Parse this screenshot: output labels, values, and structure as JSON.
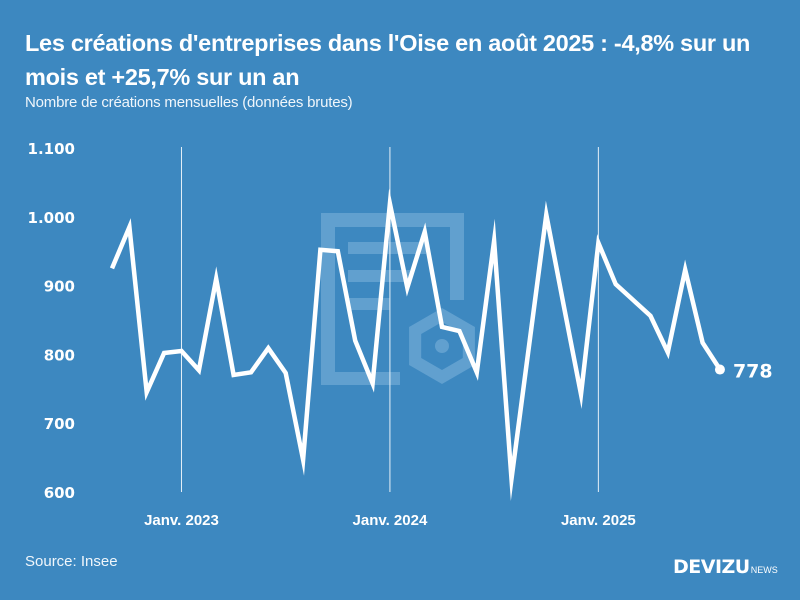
{
  "header": {
    "title": "Les créations d'entreprises dans l'Oise en août 2025 : -4,8% sur un mois et +25,7% sur un an",
    "subtitle": "Nombre de créations mensuelles (données brutes)"
  },
  "footer": {
    "source": "Source: Insee",
    "brand_main": "DEVIZU",
    "brand_sub": "NEWS"
  },
  "colors": {
    "background": "#3d88c0",
    "line": "#ffffff",
    "watermark": "#6ea8d4"
  },
  "chart_data": {
    "type": "line",
    "title": "Les créations d'entreprises dans l'Oise en août 2025 : -4,8% sur un mois et +25,7% sur un an",
    "subtitle": "Nombre de créations mensuelles (données brutes)",
    "xlabel": "",
    "ylabel": "",
    "ylim": [
      600,
      1100
    ],
    "yticks": [
      600,
      700,
      800,
      900,
      1000,
      1100
    ],
    "ytick_labels": [
      "600",
      "700",
      "800",
      "900",
      "1.000",
      "1.100"
    ],
    "xtick_labels": [
      "Janv. 2023",
      "Janv. 2024",
      "Janv. 2025"
    ],
    "xtick_months": [
      "2023-01",
      "2024-01",
      "2025-01"
    ],
    "grid": "vertical lines at January of each year",
    "legend": "none",
    "end_label": "778",
    "x": [
      "2022-09",
      "2022-10",
      "2022-11",
      "2022-12",
      "2023-01",
      "2023-02",
      "2023-03",
      "2023-04",
      "2023-05",
      "2023-06",
      "2023-07",
      "2023-08",
      "2023-09",
      "2023-10",
      "2023-11",
      "2023-12",
      "2024-01",
      "2024-02",
      "2024-03",
      "2024-04",
      "2024-05",
      "2024-06",
      "2024-07",
      "2024-08",
      "2024-09",
      "2024-10",
      "2024-11",
      "2024-12",
      "2025-01",
      "2025-02",
      "2025-03",
      "2025-04",
      "2025-05",
      "2025-06",
      "2025-07",
      "2025-08"
    ],
    "series": [
      {
        "name": "Créations d'entreprises",
        "values": [
          925,
          985,
          745,
          802,
          805,
          777,
          910,
          770,
          774,
          809,
          773,
          647,
          952,
          950,
          820,
          758,
          1019,
          897,
          978,
          840,
          834,
          774,
          965,
          619,
          811,
          1003,
          872,
          742,
          962,
          902,
          879,
          856,
          803,
          923,
          817,
          778
        ]
      }
    ],
    "source": "Source: Insee"
  }
}
